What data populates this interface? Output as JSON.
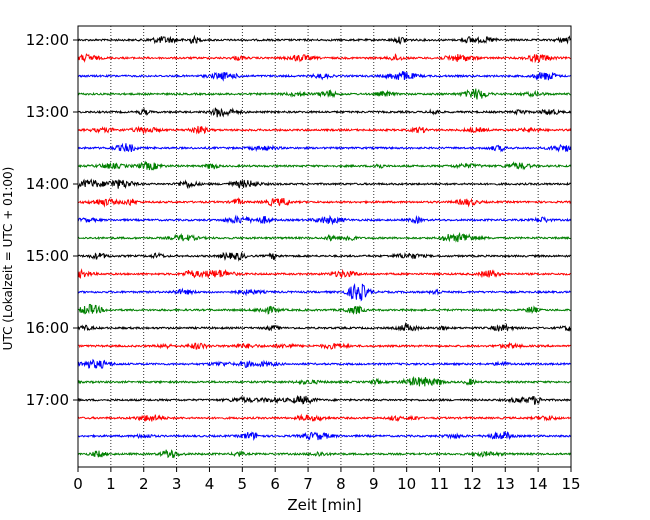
{
  "chart_data": {
    "type": "line",
    "title": "",
    "xlabel": "Zeit  [min]",
    "ylabel": "UTC (Lokalzeit = UTC + 01:00)",
    "xlim": [
      0,
      15
    ],
    "x_ticks": [
      "0",
      "1",
      "2",
      "3",
      "4",
      "5",
      "6",
      "7",
      "8",
      "9",
      "10",
      "11",
      "12",
      "13",
      "14",
      "15"
    ],
    "y_ticks": [
      "12:00",
      "13:00",
      "14:00",
      "15:00",
      "16:00",
      "17:00"
    ],
    "grid": "vertical dotted at each minute",
    "trace_start": "12:00",
    "trace_interval_minutes": 15,
    "trace_count": 24,
    "trace_colors": [
      "#000000",
      "#ff0000",
      "#0000ff",
      "#008000"
    ],
    "trace_values": "low-amplitude seismic noise (not individually readable)"
  }
}
